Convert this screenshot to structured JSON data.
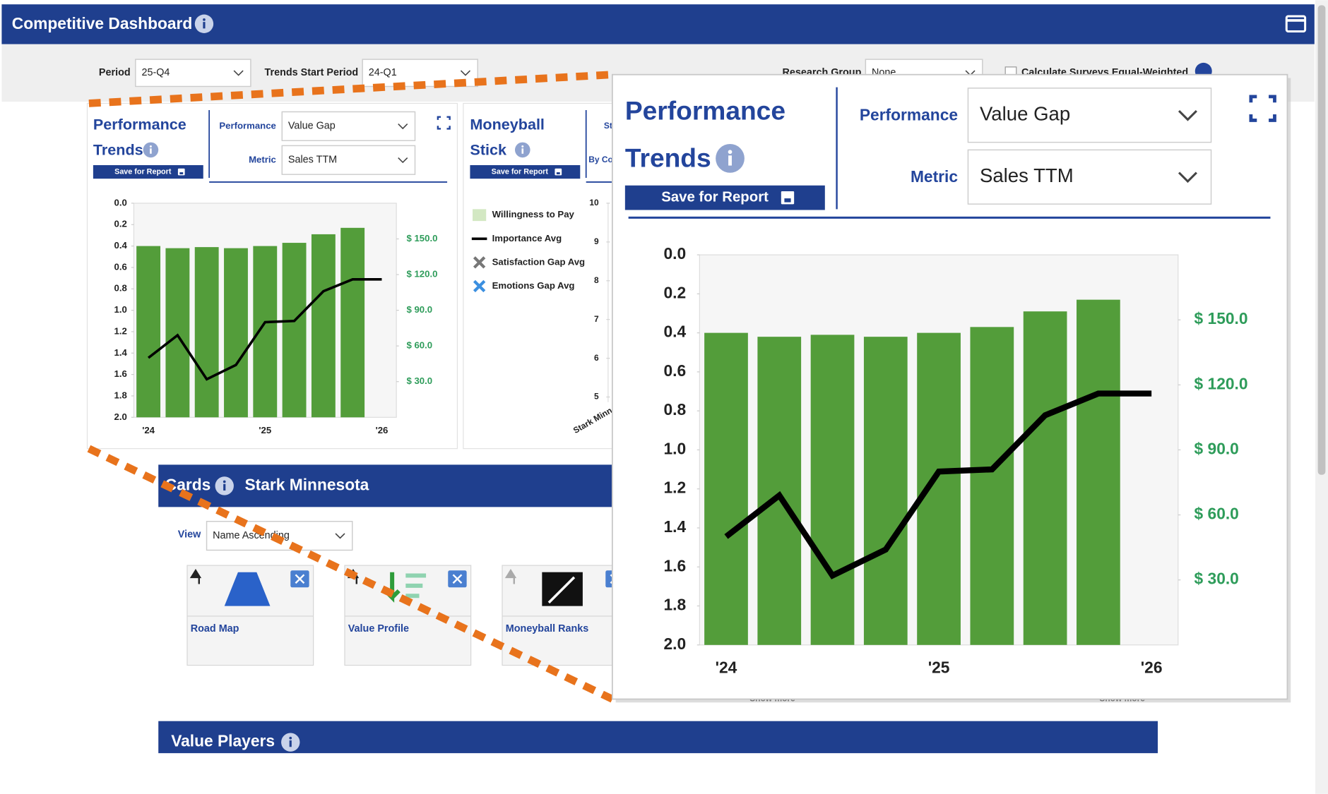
{
  "header": {
    "title": "Competitive Dashboard"
  },
  "filters": {
    "period_label": "Period",
    "period": "25-Q4",
    "trends_start_label": "Trends Start Period",
    "trends_start": "24-Q1",
    "research_group_label": "Research Group",
    "research_group": "None",
    "equal_weighted_label": "Calculate Surveys Equal-Weighted"
  },
  "performance_panel": {
    "title_line1": "Performance",
    "title_line2": "Trends",
    "save": "Save for Report",
    "performance_label": "Performance",
    "performance": "Value Gap",
    "metric_label": "Metric",
    "metric": "Sales TTM"
  },
  "moneyball_panel": {
    "title_line1": "Moneyball",
    "title_line2": "Stick",
    "save": "Save for Report",
    "label_top": "St",
    "label_bottom": "By Co",
    "x_label": "Stark Minn",
    "legend": [
      {
        "name": "Willingness to Pay",
        "color": "#d3e8c3"
      },
      {
        "name": "Importance Avg",
        "color": "#000000"
      },
      {
        "name": "Satisfaction Gap Avg",
        "color": "#777777"
      },
      {
        "name": "Emotions Gap Avg",
        "color": "#3b8fe0"
      }
    ],
    "ylim": [
      5,
      10
    ],
    "yticks": [
      10,
      9,
      8,
      7,
      6,
      5
    ]
  },
  "chart_data": {
    "type": "bar",
    "y_inverted": true,
    "grid": false,
    "categories": [
      "'24",
      null,
      null,
      null,
      "'25",
      null,
      null,
      null,
      "'26"
    ],
    "series": [
      {
        "type": "bar",
        "color": "#539d3a",
        "values": [
          0.4,
          0.42,
          0.41,
          0.42,
          0.4,
          0.37,
          0.29,
          0.23,
          null
        ]
      },
      {
        "type": "line",
        "axis": "y2",
        "color": "#000000",
        "values": [
          50,
          69,
          32,
          44,
          80,
          81,
          106,
          116,
          116
        ]
      }
    ],
    "ylim": [
      0,
      2
    ],
    "yticks": [
      {
        "value": 0,
        "label": "0.0"
      },
      {
        "value": 0.2,
        "label": "0.2"
      },
      {
        "value": 0.4,
        "label": "0.4"
      },
      {
        "value": 0.6,
        "label": "0.6"
      },
      {
        "value": 0.8,
        "label": "0.8"
      },
      {
        "value": 1,
        "label": "1.0"
      },
      {
        "value": 1.2,
        "label": "1.2"
      },
      {
        "value": 1.4,
        "label": "1.4"
      },
      {
        "value": 1.6,
        "label": "1.6"
      },
      {
        "value": 1.8,
        "label": "1.8"
      },
      {
        "value": 2,
        "label": "2.0"
      }
    ],
    "y2lim": [
      0,
      180
    ],
    "y2ticks": [
      {
        "value": 30,
        "label": "$ 30.0"
      },
      {
        "value": 60,
        "label": "$ 60.0"
      },
      {
        "value": 90,
        "label": "$ 90.0"
      },
      {
        "value": 120,
        "label": "$ 120.0"
      },
      {
        "value": 150,
        "label": "$ 150.0"
      }
    ],
    "y2_color": "#2e9c5a"
  },
  "cards": {
    "title": "Cards",
    "subject": "Stark Minnesota",
    "view_label": "View",
    "view": "Name Ascending",
    "items": [
      "Road Map",
      "Value Profile",
      "Moneyball Ranks"
    ],
    "show_more": "Show more"
  },
  "value_players": {
    "title": "Value Players"
  }
}
